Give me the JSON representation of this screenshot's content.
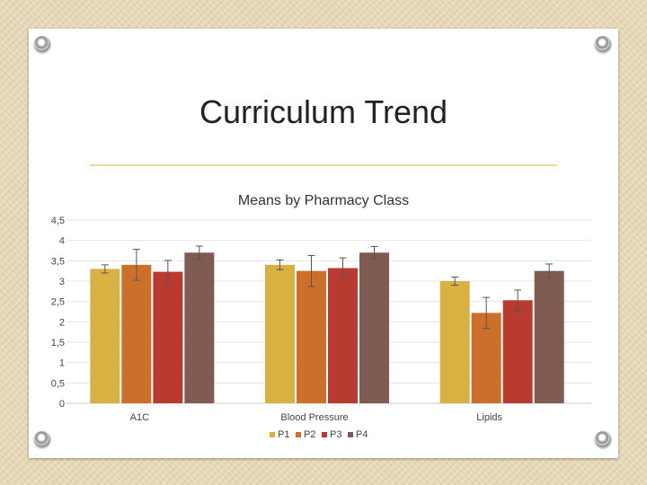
{
  "slide": {
    "title": "Curriculum Trend"
  },
  "chart_data": {
    "type": "bar",
    "title": "Means by Pharmacy Class",
    "categories": [
      "A1C",
      "Blood Pressure",
      "Lipids"
    ],
    "series": [
      {
        "name": "P1",
        "color": "#d9b143",
        "values": [
          3.3,
          3.4,
          3.0
        ],
        "error": [
          0.1,
          0.12,
          0.1
        ]
      },
      {
        "name": "P2",
        "color": "#cc6f2b",
        "values": [
          3.4,
          3.25,
          2.22
        ],
        "error": [
          0.38,
          0.38,
          0.38
        ]
      },
      {
        "name": "P3",
        "color": "#b83a31",
        "values": [
          3.23,
          3.32,
          2.53
        ],
        "error": [
          0.28,
          0.25,
          0.25
        ]
      },
      {
        "name": "P4",
        "color": "#7f5b52",
        "values": [
          3.7,
          3.7,
          3.25
        ],
        "error": [
          0.16,
          0.15,
          0.17
        ]
      }
    ],
    "yticks": [
      "0",
      "0,5",
      "1",
      "1,5",
      "2",
      "2,5",
      "3",
      "3,5",
      "4",
      "4,5"
    ],
    "ylim": [
      0,
      4.5
    ],
    "grid": true,
    "legend": "bottom"
  }
}
